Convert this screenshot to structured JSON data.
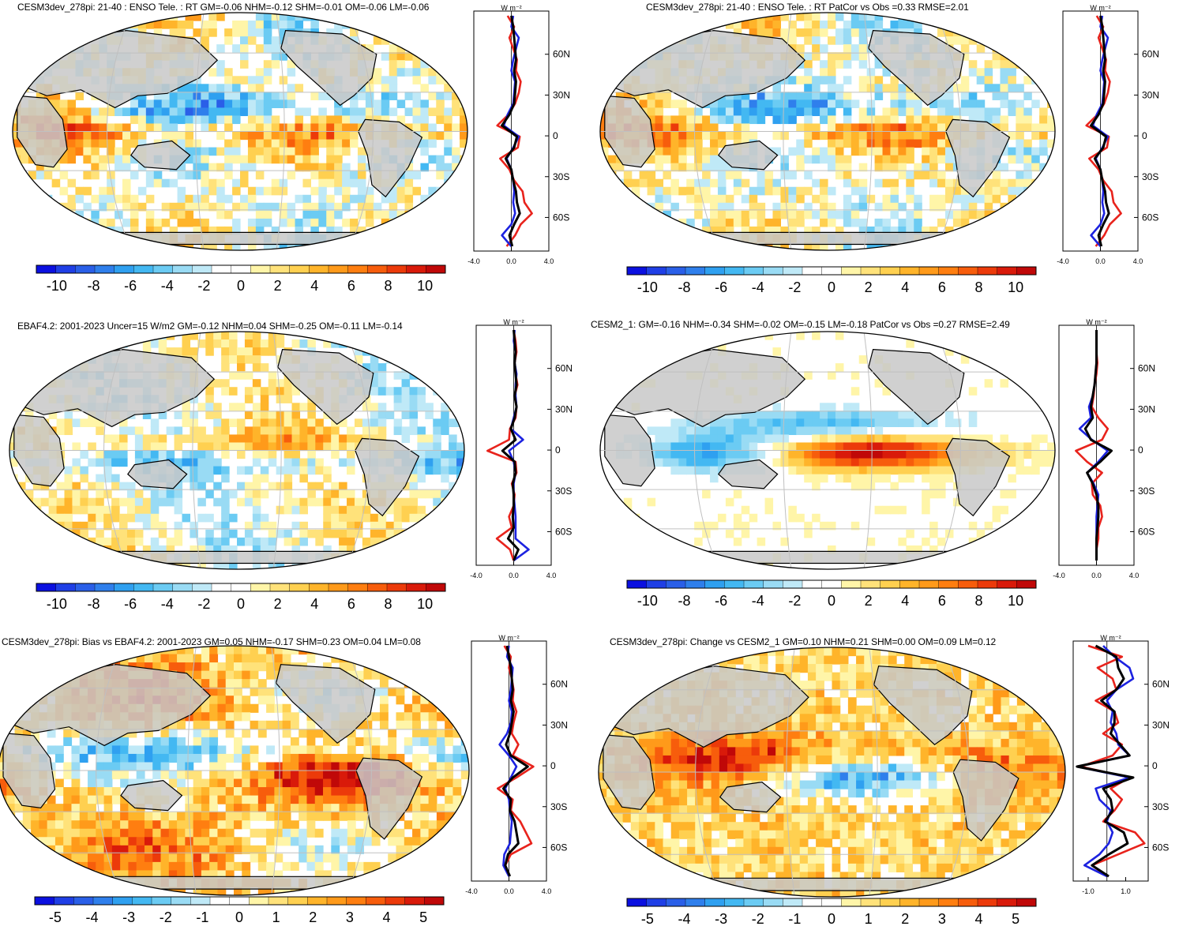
{
  "chart_data": [
    {
      "type": "heatmap",
      "panel": "top-left",
      "title": "CESM3dev_278pi: 21-40 : ENSO Tele. : RT GM=-0.06 NHM=-0.12 SHM=-0.01 OM=-0.06 LM=-0.06",
      "projection": "Robinson (Pacific-centered)",
      "colorbar": {
        "ticks": [
          "-10",
          "-8",
          "-6",
          "-4",
          "-2",
          "0",
          "2",
          "4",
          "6",
          "8",
          "10"
        ],
        "range": [
          -11,
          11
        ]
      },
      "zonal_mean": {
        "unit": "W m⁻²",
        "lat_ticks": [
          "60N",
          "30N",
          "0",
          "30S",
          "60S"
        ],
        "x_ticks": [
          "-4.0",
          "0.0",
          "4.0"
        ],
        "x_range": [
          -4,
          4
        ],
        "series": [
          {
            "name": "red",
            "color": "#e8231c",
            "values": [
              -0.4,
              0.3,
              -0.2,
              0.2,
              0.6,
              0.5,
              1.0,
              0.8,
              0.4,
              -0.3,
              -1.5,
              0.9,
              0.7,
              -1.2,
              -0.2,
              0.3,
              1.2,
              1.4,
              2.2,
              1.0,
              0.4,
              -0.5
            ]
          },
          {
            "name": "blue",
            "color": "#1c22e0",
            "values": [
              0.2,
              0.0,
              0.8,
              0.5,
              0.2,
              0.0,
              0.4,
              0.3,
              0.2,
              -0.4,
              -0.8,
              0.8,
              0.2,
              -0.5,
              0.0,
              0.2,
              0.3,
              0.2,
              0.4,
              0.0,
              -1.0,
              0.0
            ]
          },
          {
            "name": "black",
            "color": "#000000",
            "values": [
              0.0,
              0.2,
              0.3,
              0.4,
              0.5,
              0.3,
              0.5,
              0.4,
              0.3,
              -0.2,
              -1.0,
              0.6,
              0.3,
              -0.6,
              0.0,
              0.2,
              0.5,
              0.6,
              0.9,
              0.3,
              -0.2,
              0.1
            ]
          }
        ]
      }
    },
    {
      "type": "heatmap",
      "panel": "top-right",
      "title": "CESM3dev_278pi: 21-40 : ENSO Tele. : RT PatCor vs Obs =0.33 RMSE=2.01",
      "projection": "Robinson (Pacific-centered)",
      "colorbar": {
        "ticks": [
          "-10",
          "-8",
          "-6",
          "-4",
          "-2",
          "0",
          "2",
          "4",
          "6",
          "8",
          "10"
        ],
        "range": [
          -11,
          11
        ]
      },
      "zonal_mean": {
        "unit": "W m⁻²",
        "lat_ticks": [
          "60N",
          "30N",
          "0",
          "30S",
          "60S"
        ],
        "x_ticks": [
          "-4.0",
          "0.0",
          "4.0"
        ],
        "x_range": [
          -4,
          4
        ],
        "series": [
          {
            "name": "red",
            "color": "#e8231c",
            "values": [
              -0.4,
              0.3,
              -0.2,
              0.2,
              0.6,
              0.5,
              1.0,
              0.8,
              0.4,
              -0.3,
              -1.5,
              0.9,
              0.7,
              -1.2,
              -0.2,
              0.3,
              1.2,
              1.4,
              2.2,
              1.0,
              0.4,
              -0.5
            ]
          },
          {
            "name": "blue",
            "color": "#1c22e0",
            "values": [
              0.2,
              0.0,
              0.8,
              0.5,
              0.2,
              0.0,
              0.4,
              0.3,
              0.2,
              -0.4,
              -0.8,
              0.8,
              0.2,
              -0.5,
              0.0,
              0.2,
              0.3,
              0.2,
              0.4,
              0.0,
              -1.0,
              0.0
            ]
          },
          {
            "name": "black",
            "color": "#000000",
            "values": [
              0.0,
              0.2,
              0.3,
              0.4,
              0.5,
              0.3,
              0.5,
              0.4,
              0.3,
              -0.2,
              -1.0,
              0.6,
              0.3,
              -0.6,
              0.0,
              0.2,
              0.5,
              0.6,
              0.9,
              0.3,
              -0.2,
              0.1
            ]
          }
        ]
      }
    },
    {
      "type": "heatmap",
      "panel": "middle-left",
      "title": "EBAF4.2: 2001-2023 Uncer=15 W/m2 GM=-0.12 NHM=0.04 SHM=-0.25 OM=-0.11 LM=-0.14",
      "projection": "Robinson (Pacific-centered)",
      "colorbar": {
        "ticks": [
          "-10",
          "-8",
          "-6",
          "-4",
          "-2",
          "0",
          "2",
          "4",
          "6",
          "8",
          "10"
        ],
        "range": [
          -11,
          11
        ]
      },
      "zonal_mean": {
        "unit": "W m⁻²",
        "lat_ticks": [
          "60N",
          "30N",
          "0",
          "30S",
          "60S"
        ],
        "x_ticks": [
          "-4.0",
          "0.0",
          "4.0"
        ],
        "x_range": [
          -4,
          4
        ],
        "series": [
          {
            "name": "red",
            "color": "#e8231c",
            "values": [
              0.0,
              0.2,
              0.3,
              0.1,
              0.2,
              0.4,
              0.1,
              0.3,
              0.2,
              -0.4,
              -0.5,
              -2.8,
              0.2,
              0.3,
              -0.2,
              0.1,
              0.0,
              -0.5,
              -0.2,
              -1.8,
              -0.4,
              0.0
            ]
          },
          {
            "name": "blue",
            "color": "#1c22e0",
            "values": [
              0.1,
              0.0,
              0.2,
              0.1,
              0.3,
              0.2,
              0.2,
              0.3,
              0.0,
              -0.3,
              1.0,
              -0.5,
              0.0,
              0.2,
              0.0,
              0.0,
              0.1,
              0.2,
              0.2,
              0.2,
              1.6,
              0.0
            ]
          },
          {
            "name": "black",
            "color": "#000000",
            "values": [
              0.0,
              0.1,
              0.2,
              0.1,
              0.2,
              0.3,
              0.1,
              0.3,
              0.1,
              -0.3,
              0.2,
              -1.2,
              0.1,
              0.2,
              -0.1,
              0.0,
              0.0,
              -0.1,
              0.0,
              -0.6,
              0.5,
              0.0
            ]
          }
        ]
      }
    },
    {
      "type": "heatmap",
      "panel": "middle-right",
      "title": "CESM2_1: GM=-0.16 NHM=-0.34 SHM=-0.02 OM=-0.15 LM=-0.18 PatCor vs Obs =0.27 RMSE=2.49",
      "projection": "Robinson (Pacific-centered)",
      "colorbar": {
        "ticks": [
          "-10",
          "-8",
          "-6",
          "-4",
          "-2",
          "0",
          "2",
          "4",
          "6",
          "8",
          "10"
        ],
        "range": [
          -11,
          11
        ]
      },
      "zonal_mean": {
        "unit": "W m⁻²",
        "lat_ticks": [
          "60N",
          "30N",
          "0",
          "30S",
          "60S"
        ],
        "x_ticks": [
          "-4.0",
          "0.0",
          "4.0"
        ],
        "x_range": [
          -4,
          4
        ],
        "series": [
          {
            "name": "red",
            "color": "#e8231c",
            "values": [
              0.0,
              0.0,
              0.0,
              0.1,
              0.0,
              -0.2,
              -0.3,
              -0.5,
              0.2,
              1.2,
              0.6,
              -2.2,
              -1.0,
              0.6,
              -0.5,
              -0.4,
              0.4,
              0.6,
              0.2,
              0.2,
              0.0,
              0.0
            ]
          },
          {
            "name": "blue",
            "color": "#1c22e0",
            "values": [
              0.0,
              0.0,
              0.0,
              0.0,
              -0.1,
              -0.2,
              -0.4,
              -0.8,
              -0.6,
              -1.8,
              -0.5,
              1.2,
              0.2,
              -1.0,
              -0.3,
              0.2,
              0.1,
              0.0,
              0.0,
              0.0,
              0.0,
              0.0
            ]
          },
          {
            "name": "black",
            "color": "#000000",
            "values": [
              0.0,
              0.0,
              0.0,
              0.0,
              -0.1,
              -0.2,
              -0.4,
              -0.6,
              -0.4,
              -1.2,
              -0.6,
              1.6,
              0.4,
              -1.0,
              -0.4,
              0.0,
              0.2,
              0.2,
              0.1,
              0.0,
              0.0,
              0.0
            ]
          }
        ]
      }
    },
    {
      "type": "heatmap",
      "panel": "bottom-left",
      "title": "CESM3dev_278pi: Bias vs EBAF4.2: 2001-2023 GM=0.05 NHM=-0.17 SHM=0.23 OM=0.04 LM=0.08",
      "projection": "Robinson (Pacific-centered)",
      "colorbar": {
        "ticks": [
          "-5",
          "-4",
          "-3",
          "-2",
          "-1",
          "0",
          "1",
          "2",
          "3",
          "4",
          "5"
        ],
        "range": [
          -5.5,
          5.5
        ]
      },
      "zonal_mean": {
        "unit": "W m⁻²",
        "lat_ticks": [
          "60N",
          "30N",
          "0",
          "30S",
          "60S"
        ],
        "x_ticks": [
          "-4.0",
          "0.0",
          "4.0"
        ],
        "x_range": [
          -4,
          4
        ],
        "series": [
          {
            "name": "red",
            "color": "#e8231c",
            "values": [
              -0.5,
              0.2,
              0.0,
              0.3,
              0.5,
              0.4,
              0.8,
              0.5,
              0.3,
              1.0,
              0.4,
              2.6,
              0.8,
              -1.2,
              0.4,
              0.2,
              1.2,
              1.8,
              2.4,
              0.2,
              -0.4,
              0.0
            ]
          },
          {
            "name": "blue",
            "color": "#1c22e0",
            "values": [
              0.0,
              -0.2,
              0.4,
              0.3,
              0.2,
              0.0,
              0.3,
              0.2,
              -0.2,
              -1.0,
              0.0,
              0.8,
              0.2,
              -0.4,
              0.0,
              0.1,
              0.3,
              0.2,
              0.1,
              -0.5,
              -0.6,
              0.0
            ]
          },
          {
            "name": "black",
            "color": "#000000",
            "values": [
              -0.2,
              0.0,
              0.2,
              0.3,
              0.4,
              0.2,
              0.5,
              0.3,
              0.1,
              -0.3,
              0.2,
              2.0,
              0.4,
              -0.6,
              0.2,
              0.1,
              0.6,
              0.8,
              1.0,
              -0.1,
              -0.4,
              0.1
            ]
          }
        ]
      }
    },
    {
      "type": "heatmap",
      "panel": "bottom-right",
      "title": "CESM3dev_278pi: Change vs CESM2_1 GM=0.10 NHM=0.21 SHM=0.00 OM=0.09 LM=0.12",
      "projection": "Robinson (Pacific-centered)",
      "colorbar": {
        "ticks": [
          "-5",
          "-4",
          "-3",
          "-2",
          "-1",
          "0",
          "1",
          "2",
          "3",
          "4",
          "5"
        ],
        "range": [
          -5.5,
          5.5
        ]
      },
      "zonal_mean": {
        "unit": "W m⁻²",
        "lat_ticks": [
          "60N",
          "30N",
          "0",
          "30S",
          "60S"
        ],
        "x_ticks": [
          "-1.0",
          "1.0"
        ],
        "x_range": [
          -1.8,
          2.2
        ],
        "series": [
          {
            "name": "red",
            "color": "#e8231c",
            "values": [
              -1.0,
              0.8,
              -0.5,
              0.3,
              0.5,
              -0.6,
              0.4,
              0.6,
              -0.2,
              0.8,
              0.3,
              -1.4,
              1.2,
              0.2,
              0.8,
              0.4,
              -0.2,
              1.5,
              2.0,
              0.6,
              -0.8,
              0.0
            ]
          },
          {
            "name": "blue",
            "color": "#1c22e0",
            "values": [
              -0.2,
              0.4,
              1.2,
              1.4,
              0.5,
              0.0,
              0.3,
              0.2,
              0.5,
              0.6,
              1.2,
              -1.6,
              1.2,
              -0.6,
              -0.4,
              0.2,
              0.0,
              0.3,
              0.1,
              -0.4,
              -1.2,
              0.0
            ]
          },
          {
            "name": "black",
            "color": "#000000",
            "values": [
              -0.6,
              0.5,
              0.6,
              0.9,
              0.5,
              -0.3,
              0.4,
              0.4,
              0.2,
              0.7,
              1.2,
              -1.6,
              1.4,
              -0.2,
              0.2,
              0.3,
              -0.1,
              0.9,
              1.1,
              0.1,
              -0.8,
              0.1
            ]
          }
        ]
      }
    }
  ],
  "palette": {
    "diverging": [
      "#0b10e0",
      "#1f3fe6",
      "#2a5fe8",
      "#2f7fec",
      "#2fa0f0",
      "#43b8f2",
      "#6bcbf3",
      "#99dbf4",
      "#bfe9f7",
      "#ffffff",
      "#ffffff",
      "#fff5a8",
      "#ffe27a",
      "#ffd050",
      "#ffb42a",
      "#ff9a1a",
      "#ff7e10",
      "#f75d0c",
      "#ec3a0a",
      "#d91a0a",
      "#c00808"
    ],
    "land": "#c8c8c8",
    "grid": "#c0c0c0"
  }
}
